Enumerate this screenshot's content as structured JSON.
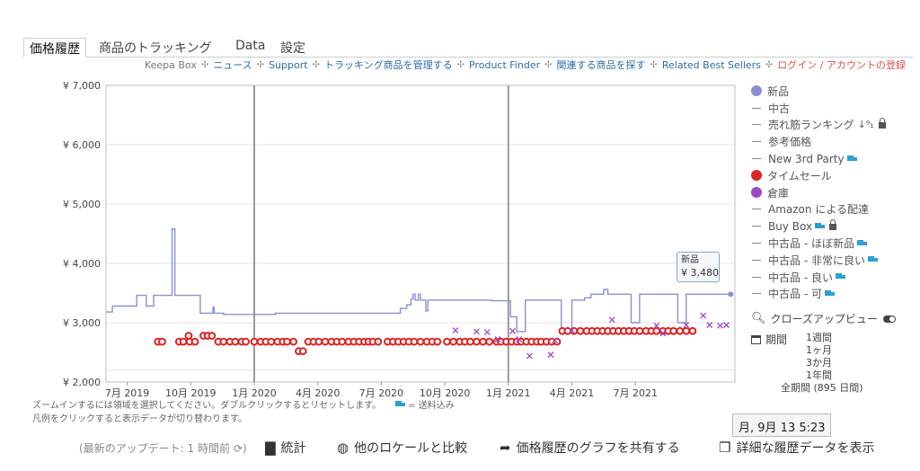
{
  "tabs": [
    {
      "label": "価格履歴"
    },
    {
      "label": "商品のトラッキング"
    },
    {
      "label": "Data"
    },
    {
      "label": "設定"
    }
  ],
  "links": {
    "keepa_box": "Keepa Box",
    "news": "ニュース",
    "support": "Support",
    "manage": "トラッキング商品を管理する",
    "finder": "Product Finder",
    "related": "関連する商品を探す",
    "bestsellers": "Related Best Sellers",
    "login": "ログイン / アカウントの登録",
    "separator": "✣"
  },
  "chart_data": {
    "type": "line",
    "y_ticks": [
      "¥ 2,000",
      "¥ 3,000",
      "¥ 4,000",
      "¥ 5,000",
      "¥ 6,000",
      "¥ 7,000"
    ],
    "x_ticks": [
      "7月 2019",
      "10月 2019",
      "1月 2020",
      "4月 2020",
      "7月 2020",
      "10月 2020",
      "1月 2021",
      "4月 2021",
      "7月 2021"
    ],
    "ylim": [
      2000,
      7000
    ],
    "x_range_month_index": [
      0,
      29.7
    ],
    "year_markers": [
      7.0,
      19.0
    ],
    "grid": true,
    "colors": {
      "new": "#8a90d4",
      "deal": "#dd2222",
      "warehouse": "#9c47c8"
    },
    "series": [
      {
        "name": "新品",
        "step": true,
        "points": [
          [
            0.0,
            3180
          ],
          [
            0.3,
            3280
          ],
          [
            0.55,
            3280
          ],
          [
            0.9,
            3280
          ],
          [
            1.45,
            3460
          ],
          [
            1.6,
            3460
          ],
          [
            1.9,
            3280
          ],
          [
            2.25,
            3280
          ],
          [
            2.25,
            3460
          ],
          [
            2.85,
            3460
          ],
          [
            3.12,
            4580
          ],
          [
            3.25,
            3460
          ],
          [
            3.8,
            3460
          ],
          [
            4.4,
            3460
          ],
          [
            4.45,
            3160
          ],
          [
            4.9,
            3160
          ],
          [
            5.05,
            3260
          ],
          [
            5.1,
            3160
          ],
          [
            5.35,
            3160
          ],
          [
            5.55,
            3160
          ],
          [
            5.55,
            3140
          ],
          [
            7.5,
            3140
          ],
          [
            8.0,
            3160
          ],
          [
            10.0,
            3160
          ],
          [
            12.2,
            3160
          ],
          [
            12.6,
            3160
          ],
          [
            13.2,
            3160
          ],
          [
            13.9,
            3240
          ],
          [
            14.1,
            3240
          ],
          [
            14.2,
            3300
          ],
          [
            14.35,
            3300
          ],
          [
            14.4,
            3400
          ],
          [
            14.5,
            3480
          ],
          [
            14.6,
            3380
          ],
          [
            14.75,
            3480
          ],
          [
            14.85,
            3380
          ],
          [
            15.0,
            3380
          ],
          [
            15.1,
            3200
          ],
          [
            15.2,
            3380
          ],
          [
            16.0,
            3380
          ],
          [
            17.0,
            3380
          ],
          [
            18.0,
            3380
          ],
          [
            18.2,
            3370
          ],
          [
            18.6,
            3370
          ],
          [
            19.1,
            3100
          ],
          [
            19.3,
            3100
          ],
          [
            19.4,
            2850
          ],
          [
            19.6,
            2850
          ],
          [
            19.8,
            3380
          ],
          [
            20.5,
            3380
          ],
          [
            21.0,
            3380
          ],
          [
            21.5,
            2880
          ],
          [
            21.8,
            2880
          ],
          [
            22.0,
            3380
          ],
          [
            22.6,
            3380
          ],
          [
            22.6,
            3420
          ],
          [
            22.8,
            3420
          ],
          [
            22.9,
            3480
          ],
          [
            23.3,
            3480
          ],
          [
            23.5,
            3560
          ],
          [
            23.7,
            3480
          ],
          [
            24.0,
            3480
          ],
          [
            24.2,
            3480
          ],
          [
            24.4,
            3480
          ],
          [
            24.6,
            3480
          ],
          [
            24.8,
            3000
          ],
          [
            25.0,
            3000
          ],
          [
            25.2,
            3480
          ],
          [
            25.6,
            3480
          ],
          [
            25.8,
            3480
          ],
          [
            26.2,
            3480
          ],
          [
            26.7,
            3480
          ],
          [
            26.8,
            3480
          ],
          [
            27.0,
            3000
          ],
          [
            27.2,
            3000
          ],
          [
            27.4,
            3480
          ],
          [
            28.5,
            3480
          ],
          [
            29.5,
            3480
          ]
        ]
      },
      {
        "name": "タイムセール",
        "marker": "circle",
        "points": [
          [
            2.45,
            2680
          ],
          [
            2.65,
            2680
          ],
          [
            3.45,
            2680
          ],
          [
            3.65,
            2680
          ],
          [
            3.9,
            2780
          ],
          [
            3.95,
            2680
          ],
          [
            4.2,
            2680
          ],
          [
            4.6,
            2780
          ],
          [
            4.8,
            2780
          ],
          [
            5.0,
            2780
          ],
          [
            5.3,
            2680
          ],
          [
            5.55,
            2680
          ],
          [
            5.85,
            2680
          ],
          [
            6.1,
            2680
          ],
          [
            6.4,
            2680
          ],
          [
            6.6,
            2680
          ],
          [
            7.0,
            2680
          ],
          [
            7.3,
            2680
          ],
          [
            7.55,
            2680
          ],
          [
            7.8,
            2680
          ],
          [
            8.1,
            2680
          ],
          [
            8.35,
            2680
          ],
          [
            8.55,
            2680
          ],
          [
            8.85,
            2680
          ],
          [
            9.1,
            2520
          ],
          [
            9.3,
            2520
          ],
          [
            9.55,
            2680
          ],
          [
            9.8,
            2680
          ],
          [
            10.05,
            2680
          ],
          [
            10.35,
            2680
          ],
          [
            10.65,
            2680
          ],
          [
            10.9,
            2680
          ],
          [
            11.15,
            2680
          ],
          [
            11.45,
            2680
          ],
          [
            11.7,
            2680
          ],
          [
            11.95,
            2680
          ],
          [
            12.2,
            2680
          ],
          [
            12.4,
            2680
          ],
          [
            12.6,
            2680
          ],
          [
            12.85,
            2680
          ],
          [
            13.3,
            2680
          ],
          [
            13.55,
            2680
          ],
          [
            13.8,
            2680
          ],
          [
            14.05,
            2680
          ],
          [
            14.3,
            2680
          ],
          [
            14.55,
            2680
          ],
          [
            14.85,
            2680
          ],
          [
            15.15,
            2680
          ],
          [
            15.4,
            2680
          ],
          [
            15.65,
            2680
          ],
          [
            16.1,
            2680
          ],
          [
            16.4,
            2680
          ],
          [
            16.7,
            2680
          ],
          [
            16.95,
            2680
          ],
          [
            17.2,
            2680
          ],
          [
            17.5,
            2680
          ],
          [
            17.8,
            2680
          ],
          [
            18.1,
            2680
          ],
          [
            18.45,
            2680
          ],
          [
            18.65,
            2680
          ],
          [
            18.9,
            2680
          ],
          [
            19.15,
            2680
          ],
          [
            19.4,
            2680
          ],
          [
            19.6,
            2680
          ],
          [
            19.85,
            2680
          ],
          [
            20.1,
            2680
          ],
          [
            20.35,
            2680
          ],
          [
            20.55,
            2680
          ],
          [
            20.8,
            2680
          ],
          [
            21.05,
            2680
          ],
          [
            21.3,
            2680
          ],
          [
            21.55,
            2860
          ],
          [
            21.8,
            2860
          ],
          [
            22.1,
            2860
          ],
          [
            22.4,
            2860
          ],
          [
            22.7,
            2860
          ],
          [
            22.95,
            2860
          ],
          [
            23.2,
            2860
          ],
          [
            23.45,
            2860
          ],
          [
            23.7,
            2860
          ],
          [
            23.95,
            2860
          ],
          [
            24.2,
            2860
          ],
          [
            24.45,
            2860
          ],
          [
            24.7,
            2860
          ],
          [
            24.95,
            2860
          ],
          [
            25.2,
            2860
          ],
          [
            25.5,
            2860
          ],
          [
            25.75,
            2860
          ],
          [
            26.0,
            2860
          ],
          [
            26.3,
            2860
          ],
          [
            26.55,
            2860
          ],
          [
            26.8,
            2860
          ],
          [
            27.1,
            2860
          ],
          [
            27.4,
            2860
          ],
          [
            27.7,
            2860
          ]
        ]
      },
      {
        "name": "倉庫",
        "marker": "x",
        "points": [
          [
            16.5,
            2870
          ],
          [
            17.5,
            2850
          ],
          [
            18.0,
            2840
          ],
          [
            18.5,
            2720
          ],
          [
            19.2,
            2860
          ],
          [
            19.5,
            2720
          ],
          [
            20.0,
            2440
          ],
          [
            21.0,
            2460
          ],
          [
            21.2,
            2700
          ],
          [
            22.0,
            2870
          ],
          [
            23.9,
            3050
          ],
          [
            26.0,
            2950
          ],
          [
            26.3,
            2820
          ],
          [
            27.4,
            2960
          ],
          [
            28.2,
            3120
          ],
          [
            28.5,
            2960
          ],
          [
            29.0,
            2950
          ],
          [
            29.3,
            2960
          ]
        ]
      }
    ]
  },
  "hints": {
    "zoom": "ズームインするには領域を選択してください。ダブルクリックするとリセットします。",
    "ship": "= 送料込み",
    "legend_toggle": "凡例をクリックすると表示データが切り替わります。"
  },
  "legend": [
    {
      "label": "新品",
      "type": "dot",
      "color": "#8a90d4"
    },
    {
      "label": "中古",
      "type": "dash"
    },
    {
      "label": "売れ筋ランキング",
      "type": "dash",
      "extra": "sort-lock"
    },
    {
      "label": "参考価格",
      "type": "dash"
    },
    {
      "label": "New 3rd Party",
      "type": "dash",
      "extra": "truck"
    },
    {
      "label": "タイムセール",
      "type": "dot",
      "color": "#dd2222"
    },
    {
      "label": "倉庫",
      "type": "dot",
      "color": "#9c47c8"
    },
    {
      "label": "Amazon による配達",
      "type": "dash"
    },
    {
      "label": "Buy Box",
      "type": "dash",
      "extra": "truck-lock"
    },
    {
      "label": "中古品 - ほぼ新品",
      "type": "dash",
      "extra": "truck"
    },
    {
      "label": "中古品 - 非常に良い",
      "type": "dash",
      "extra": "truck"
    },
    {
      "label": "中古品 - 良い",
      "type": "dash",
      "extra": "truck"
    },
    {
      "label": "中古品 - 可",
      "type": "dash",
      "extra": "truck"
    }
  ],
  "closeup": "クローズアップビュー",
  "period": {
    "label": "期間",
    "options": [
      "1週間",
      "1ヶ月",
      "3か月",
      "1年間",
      "全期間 (895 日間)"
    ]
  },
  "tooltip": {
    "label": "新品",
    "value": "¥ 3,480"
  },
  "date_tooltip": "月, 9月 13 5:23",
  "bottom": {
    "update": "(最新のアップデート: 1 時間前",
    "stats": "統計",
    "compare": "他のロケールと比較",
    "share": "価格履歴のグラフを共有する",
    "details": "詳細な履歴データを表示"
  }
}
